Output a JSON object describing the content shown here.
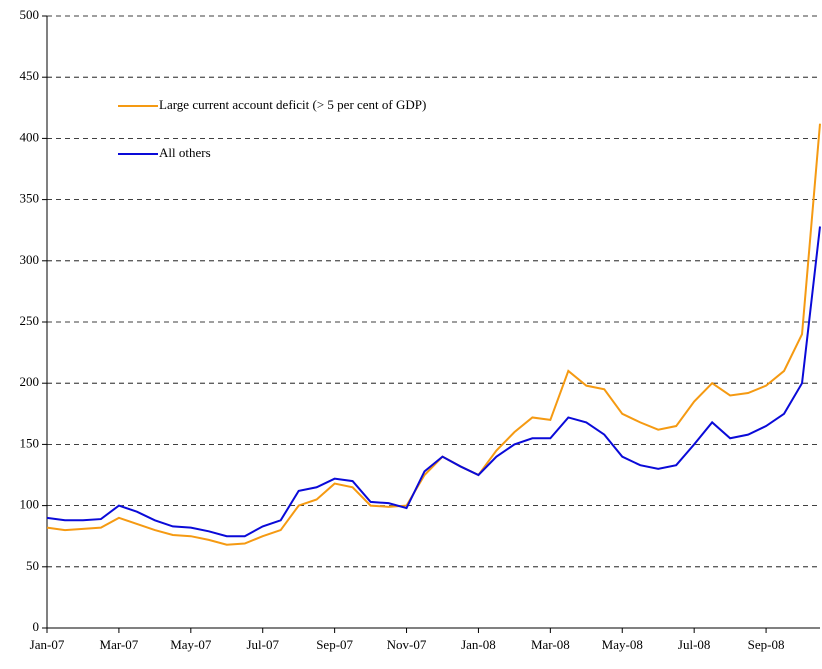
{
  "chart_data": {
    "type": "line",
    "categories": [
      "Jan-07",
      null,
      null,
      null,
      "Mar-07",
      null,
      null,
      null,
      "May-07",
      null,
      null,
      null,
      "Jul-07",
      null,
      null,
      null,
      "Sep-07",
      null,
      null,
      null,
      "Nov-07",
      null,
      null,
      null,
      "Jan-08",
      null,
      null,
      null,
      "Mar-08",
      null,
      null,
      null,
      "May-08",
      null,
      null,
      null,
      "Jul-08",
      null,
      null,
      null,
      "Sep-08",
      null,
      null,
      null
    ],
    "series": [
      {
        "name": "Large current account deficit (> 5 per cent of GDP)",
        "color": "#f59a12",
        "values": [
          82,
          80,
          81,
          82,
          90,
          85,
          80,
          76,
          75,
          72,
          68,
          69,
          75,
          80,
          100,
          105,
          118,
          115,
          100,
          99,
          100,
          125,
          140,
          132,
          125,
          145,
          160,
          172,
          170,
          210,
          198,
          195,
          175,
          168,
          162,
          165,
          185,
          200,
          190,
          192,
          198,
          210,
          240,
          412
        ]
      },
      {
        "name": "All others",
        "color": "#0a0ad8",
        "values": [
          90,
          88,
          88,
          89,
          100,
          95,
          88,
          83,
          82,
          79,
          75,
          75,
          83,
          88,
          112,
          115,
          122,
          120,
          103,
          102,
          98,
          128,
          140,
          132,
          125,
          140,
          150,
          155,
          155,
          172,
          168,
          158,
          140,
          133,
          130,
          133,
          150,
          168,
          155,
          158,
          165,
          175,
          200,
          328
        ]
      }
    ],
    "ylim": [
      0,
      500
    ],
    "yticks": [
      0,
      50,
      100,
      150,
      200,
      250,
      300,
      350,
      400,
      450,
      500
    ],
    "grid": true
  }
}
